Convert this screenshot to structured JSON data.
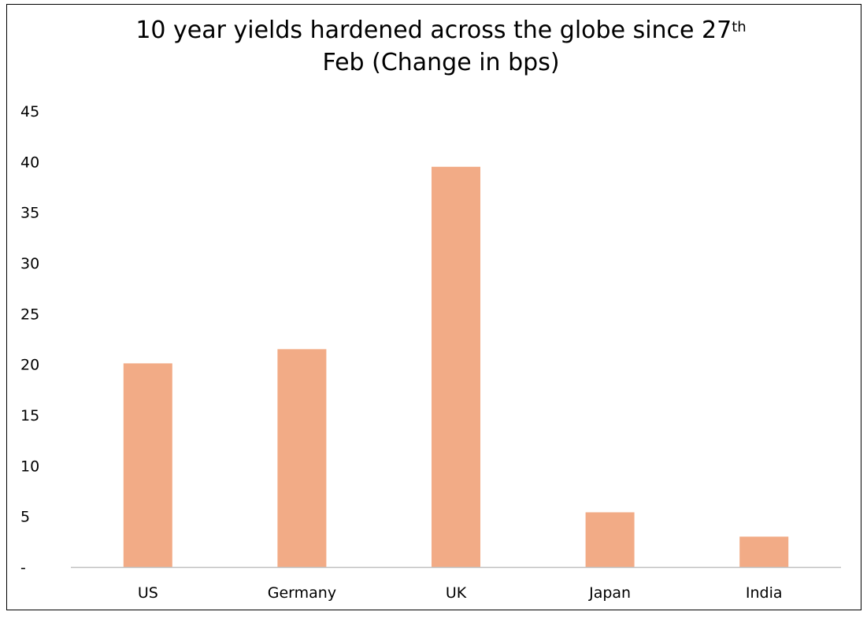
{
  "chart_data": {
    "type": "bar",
    "title": "10 year yields hardened across the globe since 27",
    "title_superscript": "th",
    "title_line2": "Feb (Change in bps)",
    "categories": [
      "US",
      "Germany",
      "UK",
      "Japan",
      "India"
    ],
    "values": [
      20.1,
      21.5,
      39.5,
      5.4,
      3.0
    ],
    "ylim": [
      0,
      45
    ],
    "yticks": [
      {
        "value": 0,
        "label": "-"
      },
      {
        "value": 5,
        "label": "5"
      },
      {
        "value": 10,
        "label": "10"
      },
      {
        "value": 15,
        "label": "15"
      },
      {
        "value": 20,
        "label": "20"
      },
      {
        "value": 25,
        "label": "25"
      },
      {
        "value": 30,
        "label": "30"
      },
      {
        "value": 35,
        "label": "35"
      },
      {
        "value": 40,
        "label": "40"
      },
      {
        "value": 45,
        "label": "45"
      }
    ],
    "xlabel": "",
    "ylabel": "",
    "grid": false,
    "legend": "none",
    "bar_color": "#f2ab86",
    "axis_color": "#bfbfbf"
  }
}
